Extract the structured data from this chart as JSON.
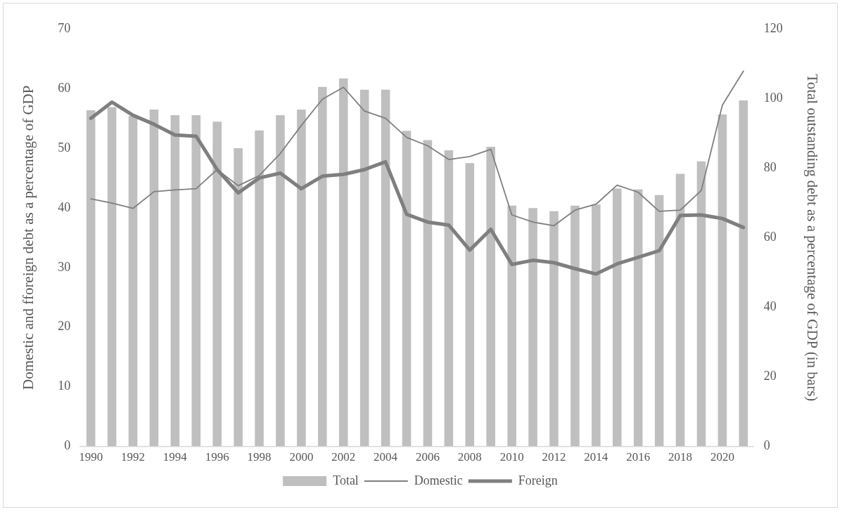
{
  "chart_data": {
    "type": "bar",
    "categories": [
      "1990",
      null,
      "1992",
      null,
      "1994",
      null,
      "1996",
      null,
      "1998",
      null,
      "2000",
      null,
      "2002",
      null,
      "2004",
      null,
      "2006",
      null,
      "2008",
      null,
      "2010",
      null,
      "2012",
      null,
      "2014",
      null,
      "2016",
      null,
      "2018",
      null,
      "2020",
      null
    ],
    "series": [
      {
        "name": "Total",
        "axis": "y2",
        "color": "#bfbfbf",
        "values": [
          96.6,
          97.5,
          95,
          96.8,
          95.2,
          95.2,
          93.3,
          85.7,
          90.8,
          95.2,
          96.8,
          103.3,
          105.7,
          102.5,
          102.5,
          90.7,
          88.0,
          85.1,
          81.4,
          86.1,
          69.2,
          68.5,
          67.6,
          69.2,
          69.5,
          74.1,
          73.9,
          72.2,
          78.3,
          81.9,
          95.4,
          99.4
        ]
      },
      {
        "name": "Domestic",
        "type": "line",
        "color": "#7f7f7f",
        "values": [
          41.5,
          40.8,
          39.9,
          42.7,
          43.0,
          43.2,
          46.4,
          43.7,
          45.4,
          49.1,
          53.8,
          58.2,
          60.2,
          56.2,
          55.0,
          51.8,
          50.4,
          48.1,
          48.6,
          49.8,
          38.8,
          37.6,
          37.0,
          39.6,
          40.6,
          43.8,
          42.6,
          39.4,
          39.6,
          42.9,
          57.2,
          62.9
        ]
      },
      {
        "name": "Foreign",
        "type": "line",
        "color": "#7f7f7f",
        "values": [
          55.0,
          57.7,
          55.5,
          54.0,
          52.2,
          52.0,
          46.4,
          42.5,
          45.0,
          45.8,
          43.2,
          45.3,
          45.6,
          46.4,
          47.7,
          38.9,
          37.6,
          37.1,
          32.9,
          36.4,
          30.5,
          31.2,
          30.8,
          29.8,
          28.9,
          30.6,
          31.7,
          32.8,
          38.7,
          38.8,
          38.2,
          36.7
        ]
      }
    ],
    "ylabel": "Domestic and fforeign debt as a percentage of GDP",
    "y2label": "Total outstanding debt as a percentage of GDP (in bars)",
    "ylim": [
      0,
      70
    ],
    "yticks": [
      0,
      10,
      20,
      30,
      40,
      50,
      60,
      70
    ],
    "y2lim": [
      0,
      120
    ],
    "y2ticks": [
      0,
      20,
      40,
      60,
      80,
      100,
      120
    ],
    "grid": false,
    "legend": "bottom",
    "marker": "none",
    "line_style": "solid"
  }
}
